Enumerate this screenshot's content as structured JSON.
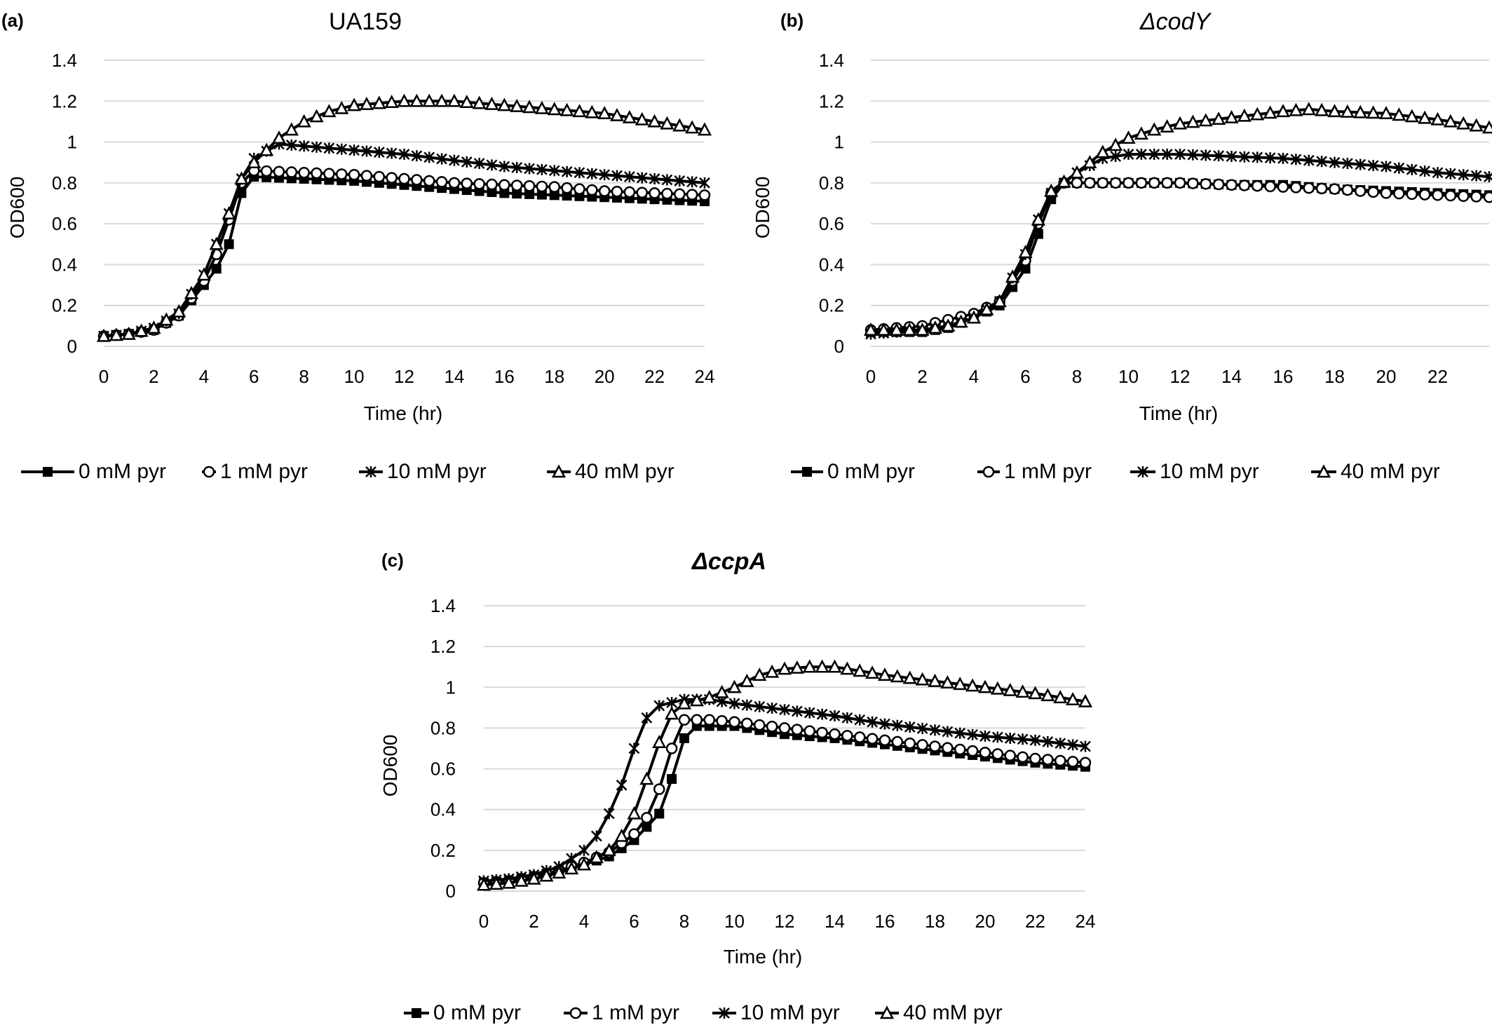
{
  "figure": {
    "panels": [
      {
        "label": "(a)",
        "title": "UA159",
        "title_italic": false,
        "title_bold": false,
        "ylabel": "OD600",
        "xlabel": "Time (hr)",
        "x_ticks": [
          "0",
          "2",
          "4",
          "6",
          "8",
          "10",
          "12",
          "14",
          "16",
          "18",
          "20",
          "22",
          "24"
        ],
        "y_ticks": [
          "0",
          "0.2",
          "0.4",
          "0.6",
          "0.8",
          "1",
          "1.2",
          "1.4"
        ]
      },
      {
        "label": "(b)",
        "title": "ΔcodY",
        "title_italic": true,
        "title_bold": false,
        "ylabel": "OD600",
        "xlabel": "Time (hr)",
        "x_ticks": [
          "0",
          "2",
          "4",
          "6",
          "8",
          "10",
          "12",
          "14",
          "16",
          "18",
          "20",
          "22"
        ],
        "y_ticks": [
          "0",
          "0.2",
          "0.4",
          "0.6",
          "0.8",
          "1",
          "1.2",
          "1.4"
        ]
      },
      {
        "label": "(c)",
        "title": "ΔccpA",
        "title_italic": true,
        "title_bold": true,
        "ylabel": "OD600",
        "xlabel": "Time (hr)",
        "x_ticks": [
          "0",
          "2",
          "4",
          "6",
          "8",
          "10",
          "12",
          "14",
          "16",
          "18",
          "20",
          "22",
          "24"
        ],
        "y_ticks": [
          "0",
          "0.2",
          "0.4",
          "0.6",
          "0.8",
          "1",
          "1.2",
          "1.4"
        ]
      }
    ],
    "legend": [
      "0 mM pyr",
      "1 mM pyr",
      "10 mM pyr",
      "40 mM pyr"
    ],
    "markers": [
      "filled-square",
      "open-circle",
      "asterisk-cross",
      "open-triangle"
    ]
  },
  "chart_data": [
    {
      "type": "line",
      "title": "UA159",
      "xlabel": "Time (hr)",
      "ylabel": "OD600",
      "xlim": [
        0,
        24
      ],
      "ylim": [
        0,
        1.4
      ],
      "grid": true,
      "legend_position": "bottom",
      "series": [
        {
          "name": "0 mM pyr",
          "marker": "filled-square",
          "points": [
            [
              0,
              0.05
            ],
            [
              1,
              0.06
            ],
            [
              2,
              0.08
            ],
            [
              3,
              0.15
            ],
            [
              4,
              0.3
            ],
            [
              4.5,
              0.38
            ],
            [
              5,
              0.5
            ],
            [
              5.5,
              0.75
            ],
            [
              6,
              0.83
            ],
            [
              8,
              0.82
            ],
            [
              10,
              0.81
            ],
            [
              12,
              0.79
            ],
            [
              14,
              0.77
            ],
            [
              16,
              0.75
            ],
            [
              18,
              0.74
            ],
            [
              20,
              0.73
            ],
            [
              22,
              0.72
            ],
            [
              24,
              0.71
            ]
          ]
        },
        {
          "name": "1 mM pyr",
          "marker": "open-circle",
          "points": [
            [
              0,
              0.05
            ],
            [
              1,
              0.06
            ],
            [
              2,
              0.08
            ],
            [
              3,
              0.15
            ],
            [
              4,
              0.32
            ],
            [
              4.5,
              0.45
            ],
            [
              5,
              0.62
            ],
            [
              5.5,
              0.8
            ],
            [
              6,
              0.86
            ],
            [
              8,
              0.85
            ],
            [
              10,
              0.84
            ],
            [
              12,
              0.82
            ],
            [
              14,
              0.8
            ],
            [
              16,
              0.79
            ],
            [
              18,
              0.78
            ],
            [
              20,
              0.76
            ],
            [
              22,
              0.75
            ],
            [
              24,
              0.74
            ]
          ]
        },
        {
          "name": "10 mM pyr",
          "marker": "asterisk-cross",
          "points": [
            [
              0,
              0.05
            ],
            [
              1,
              0.06
            ],
            [
              2,
              0.09
            ],
            [
              3,
              0.16
            ],
            [
              4,
              0.35
            ],
            [
              4.5,
              0.5
            ],
            [
              5,
              0.65
            ],
            [
              5.5,
              0.82
            ],
            [
              6,
              0.92
            ],
            [
              7,
              0.99
            ],
            [
              8,
              0.98
            ],
            [
              10,
              0.96
            ],
            [
              12,
              0.94
            ],
            [
              14,
              0.91
            ],
            [
              16,
              0.88
            ],
            [
              18,
              0.86
            ],
            [
              20,
              0.84
            ],
            [
              22,
              0.82
            ],
            [
              24,
              0.8
            ]
          ]
        },
        {
          "name": "40 mM pyr",
          "marker": "open-triangle",
          "points": [
            [
              0,
              0.05
            ],
            [
              1,
              0.06
            ],
            [
              2,
              0.09
            ],
            [
              3,
              0.17
            ],
            [
              4,
              0.35
            ],
            [
              4.5,
              0.5
            ],
            [
              5,
              0.65
            ],
            [
              5.5,
              0.82
            ],
            [
              6,
              0.9
            ],
            [
              7,
              1.02
            ],
            [
              8,
              1.1
            ],
            [
              9,
              1.15
            ],
            [
              10,
              1.18
            ],
            [
              12,
              1.2
            ],
            [
              14,
              1.2
            ],
            [
              16,
              1.18
            ],
            [
              18,
              1.16
            ],
            [
              20,
              1.14
            ],
            [
              22,
              1.1
            ],
            [
              24,
              1.06
            ]
          ]
        }
      ]
    },
    {
      "type": "line",
      "title": "ΔcodY",
      "xlabel": "Time (hr)",
      "ylabel": "OD600",
      "xlim": [
        0,
        24
      ],
      "ylim": [
        0,
        1.4
      ],
      "grid": true,
      "legend_position": "bottom",
      "series": [
        {
          "name": "0 mM pyr",
          "marker": "filled-square",
          "points": [
            [
              0,
              0.07
            ],
            [
              1,
              0.07
            ],
            [
              2,
              0.07
            ],
            [
              3,
              0.09
            ],
            [
              4,
              0.14
            ],
            [
              5,
              0.2
            ],
            [
              6,
              0.38
            ],
            [
              6.5,
              0.55
            ],
            [
              7,
              0.72
            ],
            [
              7.5,
              0.8
            ],
            [
              8,
              0.8
            ],
            [
              10,
              0.8
            ],
            [
              12,
              0.8
            ],
            [
              14,
              0.79
            ],
            [
              16,
              0.79
            ],
            [
              18,
              0.77
            ],
            [
              20,
              0.76
            ],
            [
              22,
              0.75
            ],
            [
              24,
              0.74
            ]
          ]
        },
        {
          "name": "1 mM pyr",
          "marker": "open-circle",
          "points": [
            [
              0,
              0.08
            ],
            [
              1,
              0.09
            ],
            [
              2,
              0.1
            ],
            [
              3,
              0.13
            ],
            [
              4,
              0.16
            ],
            [
              5,
              0.22
            ],
            [
              6,
              0.42
            ],
            [
              6.5,
              0.6
            ],
            [
              7,
              0.75
            ],
            [
              7.5,
              0.8
            ],
            [
              8,
              0.8
            ],
            [
              10,
              0.8
            ],
            [
              12,
              0.8
            ],
            [
              14,
              0.79
            ],
            [
              16,
              0.78
            ],
            [
              18,
              0.77
            ],
            [
              20,
              0.75
            ],
            [
              22,
              0.74
            ],
            [
              24,
              0.73
            ]
          ]
        },
        {
          "name": "10 mM pyr",
          "marker": "asterisk-cross",
          "points": [
            [
              0,
              0.06
            ],
            [
              1,
              0.07
            ],
            [
              2,
              0.08
            ],
            [
              3,
              0.1
            ],
            [
              4,
              0.14
            ],
            [
              5,
              0.22
            ],
            [
              6,
              0.45
            ],
            [
              6.5,
              0.62
            ],
            [
              7,
              0.75
            ],
            [
              8,
              0.85
            ],
            [
              9,
              0.92
            ],
            [
              10,
              0.94
            ],
            [
              12,
              0.94
            ],
            [
              14,
              0.93
            ],
            [
              16,
              0.92
            ],
            [
              18,
              0.9
            ],
            [
              20,
              0.88
            ],
            [
              22,
              0.85
            ],
            [
              24,
              0.83
            ]
          ]
        },
        {
          "name": "40 mM pyr",
          "marker": "open-triangle",
          "points": [
            [
              0,
              0.08
            ],
            [
              1,
              0.08
            ],
            [
              2,
              0.08
            ],
            [
              3,
              0.1
            ],
            [
              4,
              0.14
            ],
            [
              5,
              0.22
            ],
            [
              6,
              0.46
            ],
            [
              6.5,
              0.62
            ],
            [
              7,
              0.76
            ],
            [
              8,
              0.85
            ],
            [
              9,
              0.95
            ],
            [
              10,
              1.02
            ],
            [
              11,
              1.06
            ],
            [
              12,
              1.09
            ],
            [
              14,
              1.12
            ],
            [
              16,
              1.15
            ],
            [
              17,
              1.16
            ],
            [
              18,
              1.15
            ],
            [
              20,
              1.14
            ],
            [
              22,
              1.11
            ],
            [
              24,
              1.07
            ]
          ]
        }
      ]
    },
    {
      "type": "line",
      "title": "ΔccpA",
      "xlabel": "Time (hr)",
      "ylabel": "OD600",
      "xlim": [
        0,
        24
      ],
      "ylim": [
        0,
        1.4
      ],
      "grid": true,
      "legend_position": "bottom",
      "series": [
        {
          "name": "0 mM pyr",
          "marker": "filled-square",
          "points": [
            [
              0,
              0.04
            ],
            [
              1,
              0.05
            ],
            [
              2,
              0.07
            ],
            [
              3,
              0.1
            ],
            [
              4,
              0.13
            ],
            [
              5,
              0.17
            ],
            [
              6,
              0.25
            ],
            [
              7,
              0.38
            ],
            [
              7.5,
              0.55
            ],
            [
              8,
              0.75
            ],
            [
              8.5,
              0.81
            ],
            [
              10,
              0.81
            ],
            [
              12,
              0.77
            ],
            [
              14,
              0.75
            ],
            [
              16,
              0.72
            ],
            [
              18,
              0.69
            ],
            [
              20,
              0.66
            ],
            [
              22,
              0.63
            ],
            [
              24,
              0.61
            ]
          ]
        },
        {
          "name": "1 mM pyr",
          "marker": "open-circle",
          "points": [
            [
              0,
              0.04
            ],
            [
              1,
              0.05
            ],
            [
              2,
              0.07
            ],
            [
              3,
              0.1
            ],
            [
              4,
              0.14
            ],
            [
              5,
              0.19
            ],
            [
              6,
              0.28
            ],
            [
              6.5,
              0.36
            ],
            [
              7,
              0.5
            ],
            [
              7.5,
              0.7
            ],
            [
              8,
              0.84
            ],
            [
              9,
              0.84
            ],
            [
              10,
              0.83
            ],
            [
              12,
              0.8
            ],
            [
              14,
              0.77
            ],
            [
              16,
              0.74
            ],
            [
              18,
              0.71
            ],
            [
              20,
              0.68
            ],
            [
              22,
              0.65
            ],
            [
              24,
              0.63
            ]
          ]
        },
        {
          "name": "10 mM pyr",
          "marker": "asterisk-cross",
          "points": [
            [
              0,
              0.05
            ],
            [
              1,
              0.06
            ],
            [
              2,
              0.08
            ],
            [
              3,
              0.12
            ],
            [
              4,
              0.2
            ],
            [
              4.5,
              0.27
            ],
            [
              5,
              0.38
            ],
            [
              5.5,
              0.52
            ],
            [
              6,
              0.7
            ],
            [
              6.5,
              0.85
            ],
            [
              7,
              0.91
            ],
            [
              8,
              0.94
            ],
            [
              9,
              0.94
            ],
            [
              10,
              0.92
            ],
            [
              12,
              0.89
            ],
            [
              14,
              0.86
            ],
            [
              16,
              0.82
            ],
            [
              18,
              0.79
            ],
            [
              20,
              0.76
            ],
            [
              22,
              0.74
            ],
            [
              24,
              0.71
            ]
          ]
        },
        {
          "name": "40 mM pyr",
          "marker": "open-triangle",
          "points": [
            [
              0,
              0.03
            ],
            [
              1,
              0.04
            ],
            [
              2,
              0.06
            ],
            [
              3,
              0.09
            ],
            [
              4,
              0.13
            ],
            [
              5,
              0.2
            ],
            [
              5.5,
              0.27
            ],
            [
              6,
              0.38
            ],
            [
              6.5,
              0.55
            ],
            [
              7,
              0.73
            ],
            [
              7.5,
              0.87
            ],
            [
              8,
              0.92
            ],
            [
              9,
              0.95
            ],
            [
              10,
              1.0
            ],
            [
              11,
              1.06
            ],
            [
              12,
              1.09
            ],
            [
              13,
              1.1
            ],
            [
              14,
              1.1
            ],
            [
              15,
              1.08
            ],
            [
              16,
              1.06
            ],
            [
              18,
              1.03
            ],
            [
              20,
              1.0
            ],
            [
              22,
              0.97
            ],
            [
              24,
              0.93
            ]
          ]
        }
      ]
    }
  ]
}
